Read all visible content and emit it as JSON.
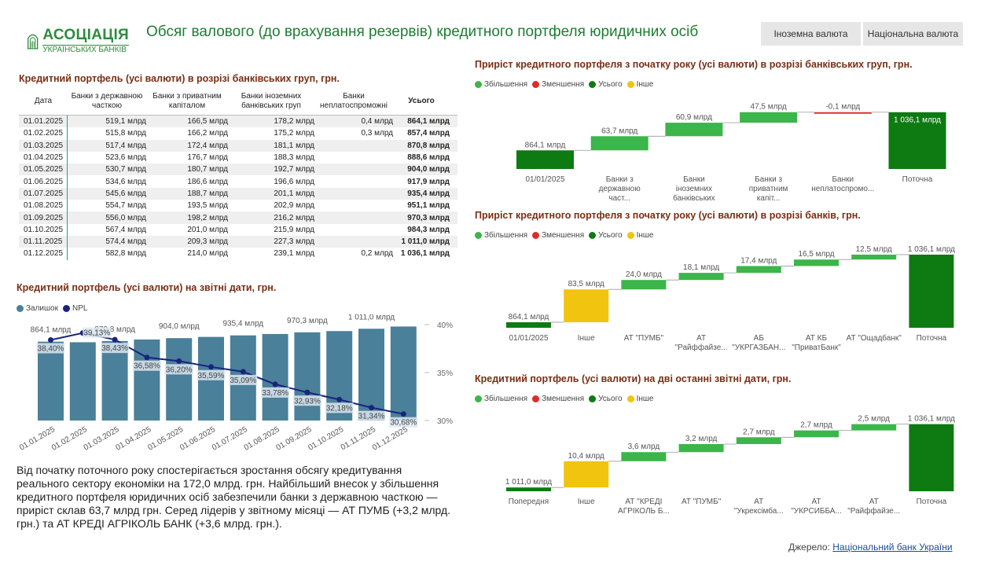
{
  "header": {
    "logo_line1": "АСОЦІАЦІЯ",
    "logo_line2": "УКРАЇНСЬКИХ БАНКІВ",
    "title": "Обсяг валового (до врахування резервів) кредитного портфеля юридичних осіб",
    "btn_foreign": "Іноземна валюта",
    "btn_national": "Національна валюта"
  },
  "colors": {
    "increase": "#3cb54a",
    "decrease": "#e02b2b",
    "total": "#0e7a12",
    "other": "#f1c40f",
    "bar": "#4a8099",
    "npl": "#1a237e",
    "title": "#7a2e14"
  },
  "table": {
    "title": "Кредитний портфель     (усі валюти) в розрізі банківських груп, грн.",
    "headers": [
      "Дата",
      "Банки з державною часткою",
      "Банки з приватним капіталом",
      "Банки іноземних банківських груп",
      "Банки неплатоспроможні",
      "Усього"
    ],
    "rows": [
      [
        "01.01.2025",
        "519,1 млрд",
        "166,5 млрд",
        "178,2 млрд",
        "0,4 млрд",
        "864,1 млрд"
      ],
      [
        "01.02.2025",
        "515,8 млрд",
        "166,2 млрд",
        "175,2 млрд",
        "0,3 млрд",
        "857,4 млрд"
      ],
      [
        "01.03.2025",
        "517,4 млрд",
        "172,4 млрд",
        "181,1 млрд",
        "",
        "870,8 млрд"
      ],
      [
        "01.04.2025",
        "523,6 млрд",
        "176,7 млрд",
        "188,3 млрд",
        "",
        "888,6 млрд"
      ],
      [
        "01.05.2025",
        "530,7 млрд",
        "180,7 млрд",
        "192,7 млрд",
        "",
        "904,0 млрд"
      ],
      [
        "01.06.2025",
        "534,6 млрд",
        "186,6 млрд",
        "196,6 млрд",
        "",
        "917,9 млрд"
      ],
      [
        "01.07.2025",
        "545,6 млрд",
        "188,7 млрд",
        "201,1 млрд",
        "",
        "935,4 млрд"
      ],
      [
        "01.08.2025",
        "554,7 млрд",
        "193,5 млрд",
        "202,9 млрд",
        "",
        "951,1 млрд"
      ],
      [
        "01.09.2025",
        "556,0 млрд",
        "198,2 млрд",
        "216,2 млрд",
        "",
        "970,3 млрд"
      ],
      [
        "01.10.2025",
        "567,4 млрд",
        "201,0 млрд",
        "215,9 млрд",
        "",
        "984,3 млрд"
      ],
      [
        "01.11.2025",
        "574,4 млрд",
        "209,3 млрд",
        "227,3 млрд",
        "",
        "1 011,0 млрд"
      ],
      [
        "01.12.2025",
        "582,8 млрд",
        "214,0 млрд",
        "239,1 млрд",
        "0,2 млрд",
        "1 036,1 млрд"
      ]
    ]
  },
  "combo_title": "Кредитний портфель   (усі валюти) на  звітні дати, грн.",
  "combo_legend": {
    "balance": "Залишок",
    "npl": "NPL"
  },
  "wf_legend": {
    "increase": "Збільшення",
    "decrease": "Зменшення",
    "total": "Усього",
    "other": "Інше"
  },
  "wf1_title": "Приріст кредитного портфеля з початку року   (усі валюти) в розрізі банківських груп, грн.",
  "wf2_title": "Приріст кредитного портфеля з початку року    (усі валюти) в розрізі банків, грн.",
  "wf3_title": "Кредитний портфель   (усі валюти) на дві останні звітні дати, грн.",
  "commentary": "Від початку поточного року спостерігається зростання обсягу кредитування реального сектору економіки на 172,0 млрд. грн. Найбільший внесок у збільшення кредитного портфеля юридичних осіб забезпечили  банки з державною часткою — приріст склав 63,7 млрд грн. Серед лідерів у звітному місяці — АТ ПУМБ (+3,2 млрд. грн.) та АТ КРЕДІ АГРІКОЛЬ БАНК (+3,6 млрд. грн.).",
  "source": {
    "label": "Джерело:",
    "link": "Національний банк України"
  },
  "chart_data": [
    {
      "type": "bar+line",
      "id": "combo",
      "categories": [
        "01.01.2025",
        "01.02.2025",
        "01.03.2025",
        "01.04.2025",
        "01.05.2025",
        "01.06.2025",
        "01.07.2025",
        "01.08.2025",
        "01.09.2025",
        "01.10.2025",
        "01.11.2025",
        "01.12.2025"
      ],
      "series": [
        {
          "name": "Залишок",
          "values": [
            864.1,
            857.4,
            870.8,
            888.6,
            904.0,
            917.9,
            935.4,
            951.1,
            970.3,
            984.3,
            1011.0,
            1036.1
          ],
          "labels": [
            "864,1 млрд",
            "",
            "870,8 млрд",
            "",
            "904,0 млрд",
            "",
            "935,4 млрд",
            "",
            "970,3 млрд",
            "",
            "1 011,0 млрд",
            ""
          ]
        },
        {
          "name": "NPL",
          "axis": "right",
          "values": [
            38.4,
            39.13,
            38.43,
            36.58,
            36.2,
            35.59,
            35.09,
            33.78,
            32.93,
            32.18,
            31.34,
            30.68
          ],
          "labels": [
            "38,40%",
            "39,13%",
            "38,43%",
            "36,58%",
            "36,20%",
            "35,59%",
            "35,09%",
            "33,78%",
            "32,93%",
            "32,18%",
            "31,34%",
            "30,68%"
          ]
        }
      ],
      "y_right_ticks": [
        "40%",
        "35%",
        "30%"
      ],
      "y_right_range": [
        30,
        40
      ]
    },
    {
      "type": "waterfall",
      "id": "wf1",
      "categories": [
        "01/01/2025",
        "Банки з державною част...",
        "Банки іноземних банківських груп",
        "Банки з приватним капіт...",
        "Банки неплатоспромо...",
        "Поточна"
      ],
      "values": [
        864.1,
        63.7,
        60.9,
        47.5,
        -0.1,
        1036.1
      ],
      "kinds": [
        "total",
        "increase",
        "increase",
        "increase",
        "decrease",
        "total"
      ],
      "labels": [
        "864,1 млрд",
        "63,7 млрд",
        "60,9 млрд",
        "47,5 млрд",
        "-0,1 млрд",
        "1 036,1 млрд"
      ],
      "ylim": [
        780,
        1060
      ]
    },
    {
      "type": "waterfall",
      "id": "wf2",
      "categories": [
        "01/01/2025",
        "Інше",
        "АТ \"ПУМБ\"",
        "АТ \"Райффайзе...",
        "АБ \"УКРГАЗБАН...",
        "АТ КБ \"ПриватБанк\"",
        "АТ \"Ощадбанк\"",
        "Поточна"
      ],
      "values": [
        864.1,
        83.5,
        24.0,
        18.1,
        17.4,
        16.5,
        12.5,
        1036.1
      ],
      "kinds": [
        "total",
        "other",
        "increase",
        "increase",
        "increase",
        "increase",
        "increase",
        "total"
      ],
      "labels": [
        "864,1 млрд",
        "83,5 млрд",
        "24,0 млрд",
        "18,1 млрд",
        "17,4 млрд",
        "16,5 млрд",
        "12,5 млрд",
        "1 036,1 млрд"
      ],
      "ylim": [
        850,
        1040
      ]
    },
    {
      "type": "waterfall",
      "id": "wf3",
      "categories": [
        "Попередня",
        "Інше",
        "АТ \"КРЕДІ АГРІКОЛЬ Б...",
        "АТ \"ПУМБ\"",
        "АТ \"Укрексімба...",
        "АТ \"УКРСИББА...",
        "АТ \"Райффайзе...",
        "Поточна"
      ],
      "values": [
        1011.0,
        10.4,
        3.6,
        3.2,
        2.7,
        2.7,
        2.5,
        1036.1
      ],
      "kinds": [
        "total",
        "other",
        "increase",
        "increase",
        "increase",
        "increase",
        "increase",
        "total"
      ],
      "labels": [
        "1 011,0 млрд",
        "10,4 млрд",
        "3,6 млрд",
        "3,2 млрд",
        "2,7 млрд",
        "2,7 млрд",
        "2,5 млрд",
        "1 036,1 млрд"
      ],
      "ylim": [
        1009.5,
        1036.6
      ]
    }
  ]
}
